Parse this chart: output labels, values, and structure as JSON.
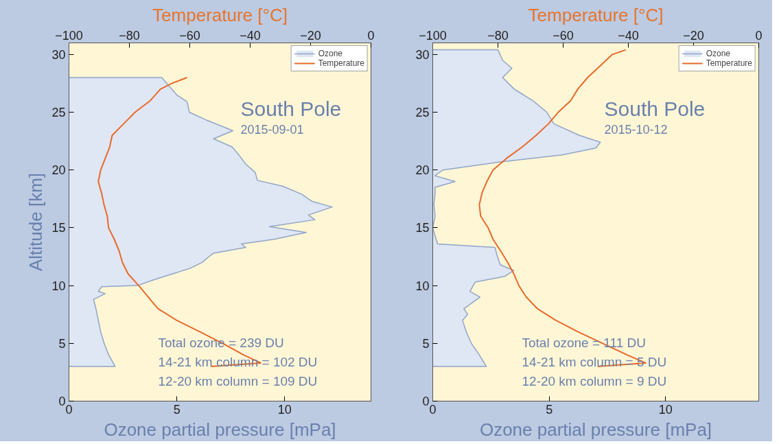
{
  "chart_data": [
    {
      "type": "line",
      "title": "South Pole",
      "subtitle": "2015-09-01",
      "xlabel": "Ozone partial pressure [mPa]",
      "x2label": "Temperature [°C]",
      "ylabel": "Altitude [km]",
      "annotations": [
        "Total ozone = 239 DU",
        "14-21 km column = 102 DU",
        "12-20 km column = 109 DU"
      ],
      "xlim": [
        0,
        14
      ],
      "xticks": [
        0,
        5,
        10
      ],
      "x2lim": [
        -100,
        0
      ],
      "x2ticks": [
        -100,
        -80,
        -60,
        -40,
        -20,
        0
      ],
      "ylim": [
        0,
        31
      ],
      "yticks": [
        0,
        5,
        10,
        15,
        20,
        25,
        30
      ],
      "grid": false,
      "legend": "top right",
      "series": [
        {
          "name": "Ozone",
          "type": "area",
          "color": "#8fa5c8",
          "x": [
            0,
            2.14,
            1.84,
            1.63,
            1.47,
            1.36,
            1.25,
            1.14,
            1.68,
            1.36,
            1.52,
            3.18,
            3.93,
            4.78,
            5.63,
            6.17,
            6.49,
            6.7,
            8.2,
            7.99,
            9.5,
            11.0,
            9.3,
            11.4,
            11.1,
            12.2,
            11.25,
            10.8,
            9.9,
            8.74,
            8.63,
            8.2,
            7.88,
            7.56,
            6.7,
            7.6,
            6.4,
            5.58,
            5.48,
            5.0,
            4.67,
            4.3,
            0
          ],
          "values": [
            3.0,
            3.0,
            4,
            5,
            6,
            7,
            8,
            8.8,
            9.3,
            9.5,
            9.9,
            10.0,
            10.5,
            11,
            11.5,
            12,
            12.5,
            12.8,
            13.3,
            13.6,
            14,
            14.6,
            15.1,
            15.7,
            16.1,
            16.8,
            17.3,
            17.9,
            18.6,
            19.1,
            19.8,
            20.5,
            21.3,
            22.0,
            22.7,
            23.4,
            24.3,
            25.0,
            25.9,
            26.5,
            27.2,
            28.0,
            28.0
          ]
        },
        {
          "name": "Temperature",
          "axis": "x2",
          "color": "#e8692a",
          "x": [
            -52.9,
            -36.5,
            -42.2,
            -49.1,
            -56.7,
            -64.4,
            -70.5,
            -73.1,
            -76.9,
            -80.4,
            -82.3,
            -83.4,
            -85.0,
            -86.9,
            -87.3,
            -88.4,
            -89.2,
            -90.3,
            -89.5,
            -88.0,
            -86.5,
            -85.7,
            -81.9,
            -78.1,
            -73.1,
            -69.7,
            -65.9,
            -60.9
          ],
          "values": [
            3.0,
            3.3,
            4,
            5,
            6,
            7,
            8,
            8.8,
            10,
            11,
            12,
            13,
            14,
            15,
            16,
            17,
            18,
            19,
            20,
            21,
            22,
            23,
            24,
            25,
            26,
            27,
            27.5,
            28.0
          ]
        }
      ]
    },
    {
      "type": "line",
      "title": "South Pole",
      "subtitle": "2015-10-12",
      "xlabel": "Ozone partial pressure [mPa]",
      "x2label": "Temperature [°C]",
      "annotations": [
        "Total ozone = 111 DU",
        "14-21 km column = 5 DU",
        "12-20 km column = 9 DU"
      ],
      "xlim": [
        0,
        14
      ],
      "xticks": [
        0,
        5,
        10
      ],
      "x2lim": [
        -100,
        0
      ],
      "x2ticks": [
        -100,
        -80,
        -60,
        -40,
        -20,
        0
      ],
      "ylim": [
        0,
        31
      ],
      "yticks": [
        0,
        5,
        10,
        15,
        20,
        25,
        30
      ],
      "grid": false,
      "legend": "top right",
      "series": [
        {
          "name": "Ozone",
          "type": "area",
          "color": "#8fa5c8",
          "x": [
            0,
            2.3,
            2.0,
            1.66,
            1.44,
            1.28,
            1.5,
            1.34,
            2.03,
            1.6,
            1.82,
            3.1,
            3.48,
            2.9,
            2.78,
            2.67,
            0.21,
            0.1,
            0,
            0.1,
            0.05,
            0.1,
            0.1,
            0.96,
            0.1,
            0.43,
            2.9,
            5.56,
            7.0,
            7.2,
            6.3,
            5.2,
            4.9,
            4.3,
            3.5,
            3.0,
            3.4,
            3.0,
            2.8,
            0
          ],
          "values": [
            3.0,
            3.0,
            4,
            5,
            6,
            7,
            7.5,
            8,
            9,
            9.5,
            10.3,
            10.8,
            11.3,
            11.8,
            12.5,
            13.3,
            13.6,
            14.3,
            15,
            16,
            17,
            18,
            18.5,
            19,
            19.5,
            20,
            20.7,
            21.3,
            21.9,
            22.4,
            23.0,
            24.0,
            25.0,
            26.0,
            27.0,
            28.0,
            28.8,
            29.5,
            30.4,
            30.4
          ]
        },
        {
          "name": "Temperature",
          "axis": "x2",
          "color": "#e8692a",
          "x": [
            -49.4,
            -34.7,
            -40.4,
            -47.9,
            -55.5,
            -62.3,
            -67.9,
            -71.3,
            -73.6,
            -75.1,
            -77.0,
            -79.2,
            -81.5,
            -83.0,
            -85.3,
            -85.7,
            -84.9,
            -83.4,
            -81.5,
            -77.4,
            -72.5,
            -68.3,
            -64.5,
            -61.5,
            -57.7,
            -55.5,
            -52.5,
            -48.7,
            -44.9,
            -40.8
          ],
          "values": [
            3.0,
            3.3,
            4,
            5,
            6,
            7,
            8,
            9,
            10,
            11,
            12,
            13,
            14,
            15,
            16,
            17,
            18,
            19,
            20,
            21,
            22,
            23,
            24,
            25,
            26,
            27,
            28,
            29,
            30,
            30.4
          ]
        }
      ]
    }
  ]
}
